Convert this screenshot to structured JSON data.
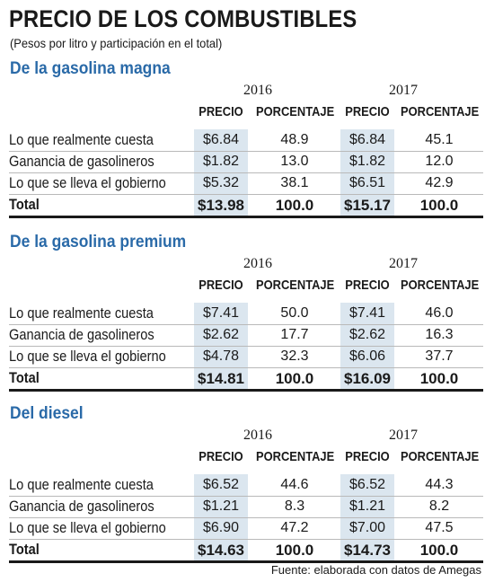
{
  "title": "PRECIO DE LOS COMBUSTIBLES",
  "subtitle": "(Pesos por litro y participación en el total)",
  "source": "Fuente: elaborada con datos de Amegas",
  "chart_data": [
    {
      "type": "table",
      "title": "De la gasolina magna",
      "years": [
        "2016",
        "2017"
      ],
      "columns": [
        "PRECIO",
        "PORCENTAJE",
        "PRECIO",
        "PORCENTAJE"
      ],
      "rows": [
        {
          "label": "Lo que realmente cuesta",
          "values": [
            "$6.84",
            "48.9",
            "$6.84",
            "45.1"
          ]
        },
        {
          "label": "Ganancia de gasolineros",
          "values": [
            "$1.82",
            "13.0",
            "$1.82",
            "12.0"
          ]
        },
        {
          "label": "Lo que se lleva el gobierno",
          "values": [
            "$5.32",
            "38.1",
            "$6.51",
            "42.9"
          ]
        },
        {
          "label": "Total",
          "values": [
            "$13.98",
            "100.0",
            "$15.17",
            "100.0"
          ]
        }
      ]
    },
    {
      "type": "table",
      "title": "De la gasolina premium",
      "years": [
        "2016",
        "2017"
      ],
      "columns": [
        "PRECIO",
        "PORCENTAJE",
        "PRECIO",
        "PORCENTAJE"
      ],
      "rows": [
        {
          "label": "Lo que realmente cuesta",
          "values": [
            "$7.41",
            "50.0",
            "$7.41",
            "46.0"
          ]
        },
        {
          "label": "Ganancia de gasolineros",
          "values": [
            "$2.62",
            "17.7",
            "$2.62",
            "16.3"
          ]
        },
        {
          "label": "Lo que se lleva el gobierno",
          "values": [
            "$4.78",
            "32.3",
            "$6.06",
            "37.7"
          ]
        },
        {
          "label": "Total",
          "values": [
            "$14.81",
            "100.0",
            "$16.09",
            "100.0"
          ]
        }
      ]
    },
    {
      "type": "table",
      "title": "Del diesel",
      "years": [
        "2016",
        "2017"
      ],
      "columns": [
        "PRECIO",
        "PORCENTAJE",
        "PRECIO",
        "PORCENTAJE"
      ],
      "rows": [
        {
          "label": "Lo que realmente cuesta",
          "values": [
            "$6.52",
            "44.6",
            "$6.52",
            "44.3"
          ]
        },
        {
          "label": "Ganancia de gasolineros",
          "values": [
            "$1.21",
            "8.3",
            "$1.21",
            "8.2"
          ]
        },
        {
          "label": "Lo que se lleva el gobierno",
          "values": [
            "$6.90",
            "47.2",
            "$7.00",
            "47.5"
          ]
        },
        {
          "label": "Total",
          "values": [
            "$14.63",
            "100.0",
            "$14.73",
            "100.0"
          ]
        }
      ]
    }
  ]
}
